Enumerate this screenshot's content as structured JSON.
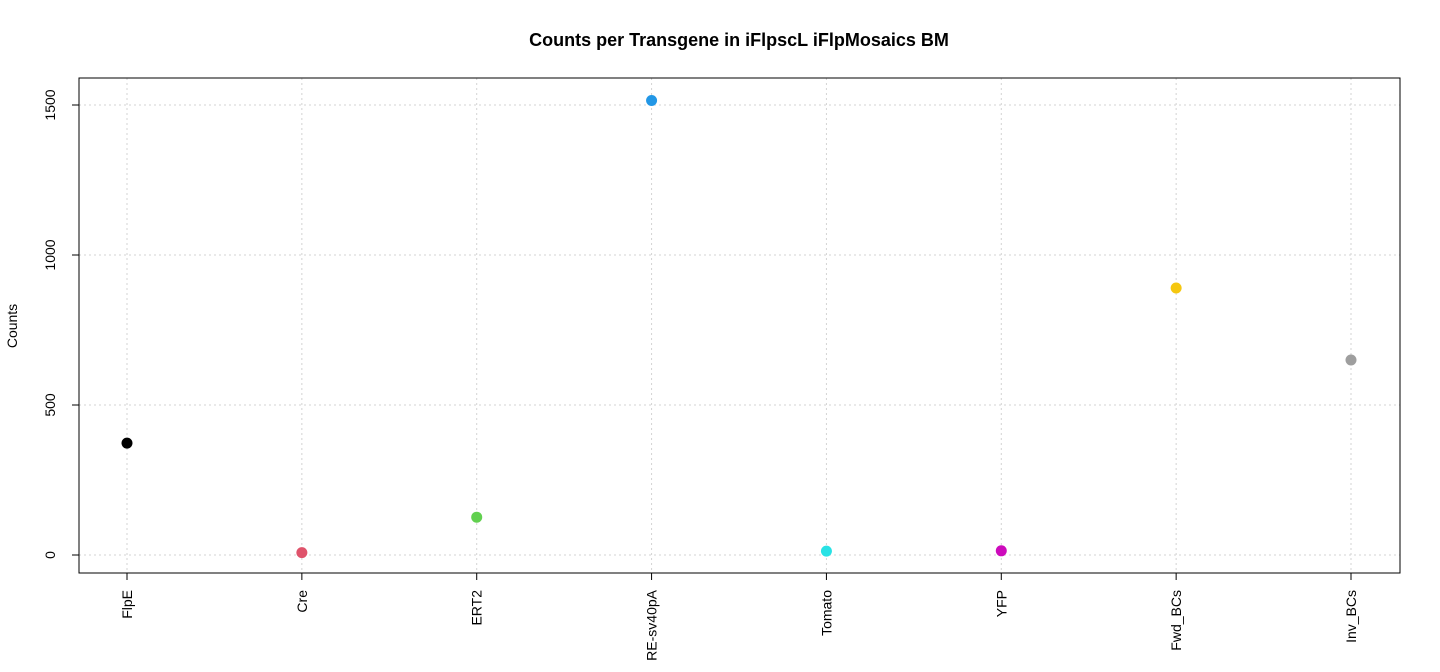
{
  "chart_data": {
    "type": "scatter",
    "title": "Counts per Transgene in iFlpscL iFlpMosaics BM",
    "xlabel": "",
    "ylabel": "Counts",
    "categories": [
      "FlpE",
      "Cre",
      "ERT2",
      "RE-sv40pA",
      "Tomato",
      "YFP",
      "Fwd_BCs",
      "Inv_BCs"
    ],
    "values": [
      373,
      8,
      126,
      1515,
      13,
      14,
      890,
      650
    ],
    "point_colors": [
      "#000000",
      "#DF536B",
      "#61D04F",
      "#2297E6",
      "#28E2E5",
      "#CD0BBC",
      "#F5C710",
      "#9E9E9E"
    ],
    "ylim": [
      -60,
      1590
    ],
    "yticks": [
      0,
      500,
      1000,
      1500
    ],
    "ytick_labels": [
      "0",
      "500",
      "1000",
      "1500"
    ],
    "grid": true,
    "legend": "none"
  }
}
